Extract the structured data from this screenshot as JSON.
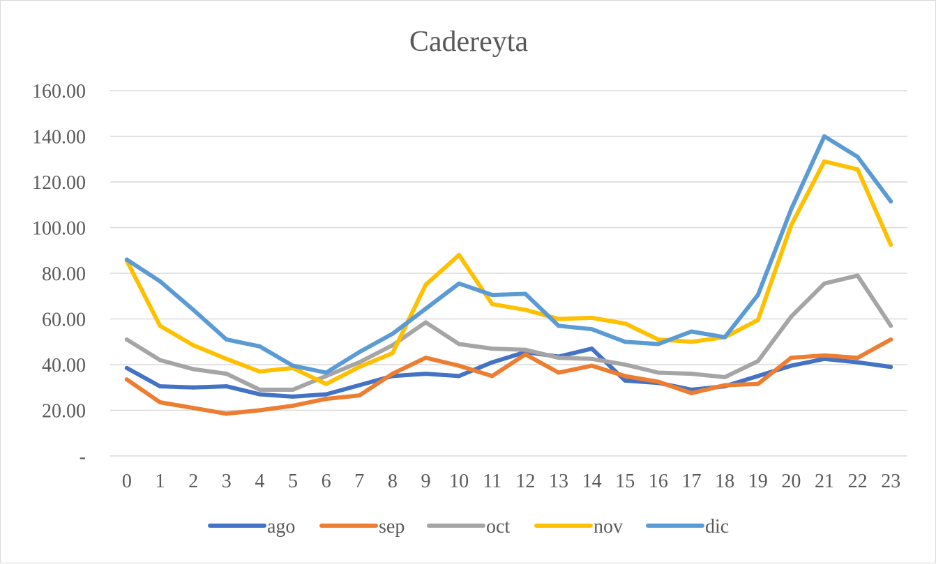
{
  "chart_data": {
    "type": "line",
    "title": "Cadereyta",
    "xlabel": "",
    "ylabel": "",
    "ylim": [
      0,
      160
    ],
    "yticks": [
      0,
      20,
      40,
      60,
      80,
      100,
      120,
      140,
      160
    ],
    "ytick_labels": [
      "-",
      "20.00",
      "40.00",
      "60.00",
      "80.00",
      "100.00",
      "120.00",
      "140.00",
      "160.00"
    ],
    "categories": [
      "0",
      "1",
      "2",
      "3",
      "4",
      "5",
      "6",
      "7",
      "8",
      "9",
      "10",
      "11",
      "12",
      "13",
      "14",
      "15",
      "16",
      "17",
      "18",
      "19",
      "20",
      "21",
      "22",
      "23"
    ],
    "grid": true,
    "legend_position": "bottom",
    "series": [
      {
        "name": "ago",
        "color": "#4472c4",
        "values": [
          38.5,
          30.5,
          30,
          30.5,
          27,
          26,
          27,
          31,
          35,
          36,
          35,
          41,
          45.5,
          43.5,
          47,
          33,
          32,
          29,
          30.5,
          35,
          39.5,
          42.5,
          41,
          39
        ]
      },
      {
        "name": "sep",
        "color": "#ed7d31",
        "values": [
          33.5,
          23.5,
          21,
          18.5,
          20,
          22,
          25,
          26.5,
          36,
          43,
          39.5,
          35,
          44.5,
          36.5,
          39.5,
          35,
          32.5,
          27.5,
          31,
          31.5,
          43,
          44,
          43,
          51
        ]
      },
      {
        "name": "oct",
        "color": "#a5a5a5",
        "values": [
          51,
          42,
          38,
          36,
          29,
          29,
          35,
          41,
          48.5,
          58.5,
          49,
          47,
          46.5,
          43,
          42.5,
          40,
          36.5,
          36,
          34.5,
          41.5,
          61,
          75.5,
          79,
          57
        ]
      },
      {
        "name": "nov",
        "color": "#ffc000",
        "values": [
          85.5,
          57,
          48.5,
          42.5,
          37,
          38.5,
          31.5,
          39,
          45,
          75,
          88,
          66.5,
          64,
          60,
          60.5,
          58,
          51,
          50,
          52,
          59.5,
          101,
          129,
          125.5,
          92.5
        ]
      },
      {
        "name": "dic",
        "color": "#5b9bd5",
        "values": [
          86,
          76.5,
          64,
          51,
          48,
          39.5,
          36.5,
          45.5,
          53.5,
          64.5,
          75.5,
          70.5,
          71,
          57,
          55.5,
          50,
          49,
          54.5,
          52,
          70.5,
          108,
          140,
          131,
          111.5
        ]
      }
    ]
  }
}
